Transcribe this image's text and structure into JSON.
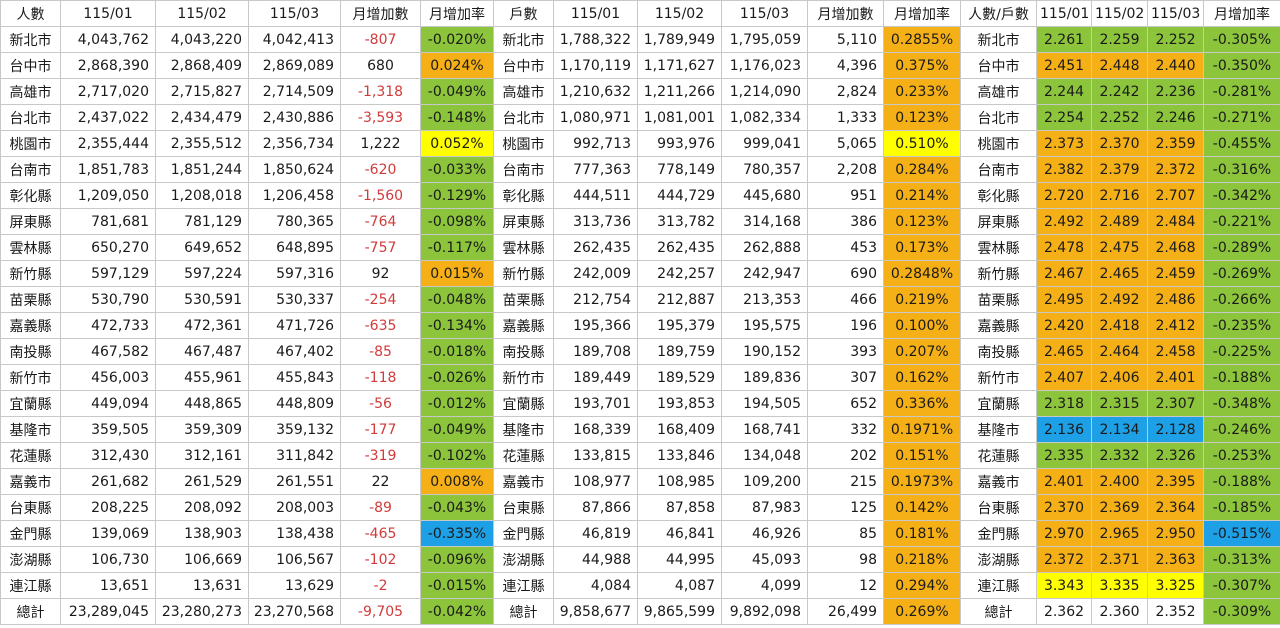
{
  "headers": [
    "人數",
    "115/01",
    "115/02",
    "115/03",
    "月增加數",
    "月增加率",
    "戶數",
    "115/01",
    "115/02",
    "115/03",
    "月增加數",
    "月增加率",
    "人數/戶數",
    "115/01",
    "115/02",
    "115/03",
    "月增加率"
  ],
  "colors": {
    "green": "#8cc43c",
    "orange": "#f6b017",
    "yellow": "#ffff00",
    "blue": "#1ea0e6",
    "negative_text": "#d23b3b"
  },
  "rows": [
    {
      "c": [
        "新北市",
        "4,043,762",
        "4,043,220",
        "4,042,413",
        "-807",
        "-0.020%",
        "新北市",
        "1,788,322",
        "1,789,949",
        "1,795,059",
        "5,110",
        "0.2855%",
        "新北市",
        "2.261",
        "2.259",
        "2.252",
        "-0.305%"
      ],
      "fill": [
        "green",
        "orange",
        "green",
        "green"
      ]
    },
    {
      "c": [
        "台中市",
        "2,868,390",
        "2,868,409",
        "2,869,089",
        "680",
        "0.024%",
        "台中市",
        "1,170,119",
        "1,171,627",
        "1,176,023",
        "4,396",
        "0.375%",
        "台中市",
        "2.451",
        "2.448",
        "2.440",
        "-0.350%"
      ],
      "fill": [
        "orange",
        "orange",
        "orange",
        "green"
      ]
    },
    {
      "c": [
        "高雄市",
        "2,717,020",
        "2,715,827",
        "2,714,509",
        "-1,318",
        "-0.049%",
        "高雄市",
        "1,210,632",
        "1,211,266",
        "1,214,090",
        "2,824",
        "0.233%",
        "高雄市",
        "2.244",
        "2.242",
        "2.236",
        "-0.281%"
      ],
      "fill": [
        "green",
        "orange",
        "green",
        "green"
      ]
    },
    {
      "c": [
        "台北市",
        "2,437,022",
        "2,434,479",
        "2,430,886",
        "-3,593",
        "-0.148%",
        "台北市",
        "1,080,971",
        "1,081,001",
        "1,082,334",
        "1,333",
        "0.123%",
        "台北市",
        "2.254",
        "2.252",
        "2.246",
        "-0.271%"
      ],
      "fill": [
        "green",
        "orange",
        "green",
        "green"
      ]
    },
    {
      "c": [
        "桃園市",
        "2,355,444",
        "2,355,512",
        "2,356,734",
        "1,222",
        "0.052%",
        "桃園市",
        "992,713",
        "993,976",
        "999,041",
        "5,065",
        "0.510%",
        "桃園市",
        "2.373",
        "2.370",
        "2.359",
        "-0.455%"
      ],
      "fill": [
        "yellow",
        "yellow",
        "orange",
        "green"
      ]
    },
    {
      "c": [
        "台南市",
        "1,851,783",
        "1,851,244",
        "1,850,624",
        "-620",
        "-0.033%",
        "台南市",
        "777,363",
        "778,149",
        "780,357",
        "2,208",
        "0.284%",
        "台南市",
        "2.382",
        "2.379",
        "2.372",
        "-0.316%"
      ],
      "fill": [
        "green",
        "orange",
        "orange",
        "green"
      ]
    },
    {
      "c": [
        "彰化縣",
        "1,209,050",
        "1,208,018",
        "1,206,458",
        "-1,560",
        "-0.129%",
        "彰化縣",
        "444,511",
        "444,729",
        "445,680",
        "951",
        "0.214%",
        "彰化縣",
        "2.720",
        "2.716",
        "2.707",
        "-0.342%"
      ],
      "fill": [
        "green",
        "orange",
        "orange",
        "green"
      ]
    },
    {
      "c": [
        "屏東縣",
        "781,681",
        "781,129",
        "780,365",
        "-764",
        "-0.098%",
        "屏東縣",
        "313,736",
        "313,782",
        "314,168",
        "386",
        "0.123%",
        "屏東縣",
        "2.492",
        "2.489",
        "2.484",
        "-0.221%"
      ],
      "fill": [
        "green",
        "orange",
        "orange",
        "green"
      ]
    },
    {
      "c": [
        "雲林縣",
        "650,270",
        "649,652",
        "648,895",
        "-757",
        "-0.117%",
        "雲林縣",
        "262,435",
        "262,435",
        "262,888",
        "453",
        "0.173%",
        "雲林縣",
        "2.478",
        "2.475",
        "2.468",
        "-0.289%"
      ],
      "fill": [
        "green",
        "orange",
        "orange",
        "green"
      ]
    },
    {
      "c": [
        "新竹縣",
        "597,129",
        "597,224",
        "597,316",
        "92",
        "0.015%",
        "新竹縣",
        "242,009",
        "242,257",
        "242,947",
        "690",
        "0.2848%",
        "新竹縣",
        "2.467",
        "2.465",
        "2.459",
        "-0.269%"
      ],
      "fill": [
        "orange",
        "orange",
        "orange",
        "green"
      ]
    },
    {
      "c": [
        "苗栗縣",
        "530,790",
        "530,591",
        "530,337",
        "-254",
        "-0.048%",
        "苗栗縣",
        "212,754",
        "212,887",
        "213,353",
        "466",
        "0.219%",
        "苗栗縣",
        "2.495",
        "2.492",
        "2.486",
        "-0.266%"
      ],
      "fill": [
        "green",
        "orange",
        "orange",
        "green"
      ]
    },
    {
      "c": [
        "嘉義縣",
        "472,733",
        "472,361",
        "471,726",
        "-635",
        "-0.134%",
        "嘉義縣",
        "195,366",
        "195,379",
        "195,575",
        "196",
        "0.100%",
        "嘉義縣",
        "2.420",
        "2.418",
        "2.412",
        "-0.235%"
      ],
      "fill": [
        "green",
        "orange",
        "orange",
        "green"
      ]
    },
    {
      "c": [
        "南投縣",
        "467,582",
        "467,487",
        "467,402",
        "-85",
        "-0.018%",
        "南投縣",
        "189,708",
        "189,759",
        "190,152",
        "393",
        "0.207%",
        "南投縣",
        "2.465",
        "2.464",
        "2.458",
        "-0.225%"
      ],
      "fill": [
        "green",
        "orange",
        "orange",
        "green"
      ]
    },
    {
      "c": [
        "新竹市",
        "456,003",
        "455,961",
        "455,843",
        "-118",
        "-0.026%",
        "新竹市",
        "189,449",
        "189,529",
        "189,836",
        "307",
        "0.162%",
        "新竹市",
        "2.407",
        "2.406",
        "2.401",
        "-0.188%"
      ],
      "fill": [
        "green",
        "orange",
        "orange",
        "green"
      ]
    },
    {
      "c": [
        "宜蘭縣",
        "449,094",
        "448,865",
        "448,809",
        "-56",
        "-0.012%",
        "宜蘭縣",
        "193,701",
        "193,853",
        "194,505",
        "652",
        "0.336%",
        "宜蘭縣",
        "2.318",
        "2.315",
        "2.307",
        "-0.348%"
      ],
      "fill": [
        "green",
        "orange",
        "green",
        "green"
      ]
    },
    {
      "c": [
        "基隆市",
        "359,505",
        "359,309",
        "359,132",
        "-177",
        "-0.049%",
        "基隆市",
        "168,339",
        "168,409",
        "168,741",
        "332",
        "0.1971%",
        "基隆市",
        "2.136",
        "2.134",
        "2.128",
        "-0.246%"
      ],
      "fill": [
        "green",
        "orange",
        "blue",
        "green"
      ]
    },
    {
      "c": [
        "花蓮縣",
        "312,430",
        "312,161",
        "311,842",
        "-319",
        "-0.102%",
        "花蓮縣",
        "133,815",
        "133,846",
        "134,048",
        "202",
        "0.151%",
        "花蓮縣",
        "2.335",
        "2.332",
        "2.326",
        "-0.253%"
      ],
      "fill": [
        "green",
        "orange",
        "green",
        "green"
      ]
    },
    {
      "c": [
        "嘉義市",
        "261,682",
        "261,529",
        "261,551",
        "22",
        "0.008%",
        "嘉義市",
        "108,977",
        "108,985",
        "109,200",
        "215",
        "0.1973%",
        "嘉義市",
        "2.401",
        "2.400",
        "2.395",
        "-0.188%"
      ],
      "fill": [
        "orange",
        "orange",
        "orange",
        "green"
      ]
    },
    {
      "c": [
        "台東縣",
        "208,225",
        "208,092",
        "208,003",
        "-89",
        "-0.043%",
        "台東縣",
        "87,866",
        "87,858",
        "87,983",
        "125",
        "0.142%",
        "台東縣",
        "2.370",
        "2.369",
        "2.364",
        "-0.185%"
      ],
      "fill": [
        "green",
        "orange",
        "orange",
        "green"
      ]
    },
    {
      "c": [
        "金門縣",
        "139,069",
        "138,903",
        "138,438",
        "-465",
        "-0.335%",
        "金門縣",
        "46,819",
        "46,841",
        "46,926",
        "85",
        "0.181%",
        "金門縣",
        "2.970",
        "2.965",
        "2.950",
        "-0.515%"
      ],
      "fill": [
        "blue",
        "orange",
        "orange",
        "blue"
      ]
    },
    {
      "c": [
        "澎湖縣",
        "106,730",
        "106,669",
        "106,567",
        "-102",
        "-0.096%",
        "澎湖縣",
        "44,988",
        "44,995",
        "45,093",
        "98",
        "0.218%",
        "澎湖縣",
        "2.372",
        "2.371",
        "2.363",
        "-0.313%"
      ],
      "fill": [
        "green",
        "orange",
        "orange",
        "green"
      ]
    },
    {
      "c": [
        "連江縣",
        "13,651",
        "13,631",
        "13,629",
        "-2",
        "-0.015%",
        "連江縣",
        "4,084",
        "4,087",
        "4,099",
        "12",
        "0.294%",
        "連江縣",
        "3.343",
        "3.335",
        "3.325",
        "-0.307%"
      ],
      "fill": [
        "green",
        "orange",
        "yellow",
        "green"
      ]
    },
    {
      "c": [
        "總計",
        "23,289,045",
        "23,280,273",
        "23,270,568",
        "-9,705",
        "-0.042%",
        "總計",
        "9,858,677",
        "9,865,599",
        "9,892,098",
        "26,499",
        "0.269%",
        "總計",
        "2.362",
        "2.360",
        "2.352",
        "-0.309%"
      ],
      "fill": [
        "green",
        "orange",
        "none",
        "green"
      ]
    }
  ]
}
